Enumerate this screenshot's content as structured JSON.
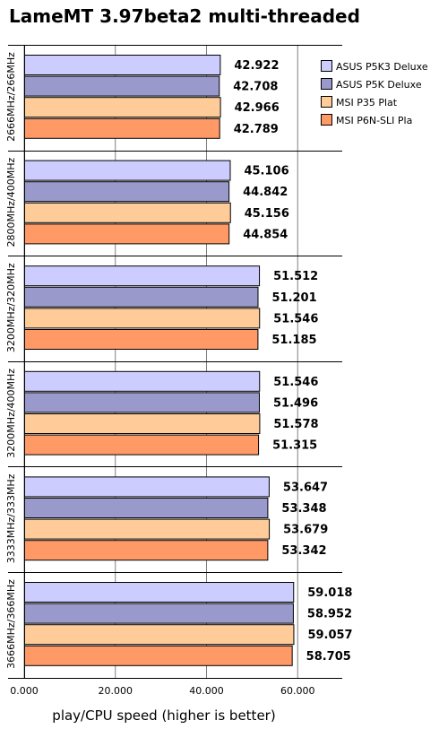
{
  "title": "LameMT 3.97beta2 multi-threaded",
  "chart_data": {
    "type": "bar",
    "orientation": "horizontal",
    "title": "LameMT 3.97beta2 multi-threaded",
    "xlabel": "play/CPU speed (higher is better)",
    "ylabel": "",
    "xlim": [
      0,
      70
    ],
    "xticks": [
      "0.000",
      "20.000",
      "40.000",
      "60.000"
    ],
    "xtick_values": [
      0,
      20,
      40,
      60
    ],
    "grid": "vertical",
    "legend_position": "top-right",
    "categories": [
      "2666MHz/266MHz",
      "2800MHz/400MHz",
      "3200MHz/320MHz",
      "3200MHz/400MHz",
      "3333MHz/333MHz",
      "3666MHz/366MHz"
    ],
    "series": [
      {
        "name": "ASUS P5K3 Deluxe",
        "color": "#ccccff",
        "values": [
          42.922,
          45.106,
          51.512,
          51.546,
          53.647,
          59.018
        ],
        "labels": [
          "42.922",
          "45.106",
          "51.512",
          "51.546",
          "53.647",
          "59.018"
        ]
      },
      {
        "name": "ASUS P5K Deluxe",
        "color": "#9999cc",
        "values": [
          42.708,
          44.842,
          51.201,
          51.496,
          53.348,
          58.952
        ],
        "labels": [
          "42.708",
          "44.842",
          "51.201",
          "51.496",
          "53.348",
          "58.952"
        ]
      },
      {
        "name": "MSI P35 Plat",
        "color": "#ffcc99",
        "values": [
          42.966,
          45.156,
          51.546,
          51.578,
          53.679,
          59.057
        ],
        "labels": [
          "42.966",
          "45.156",
          "51.546",
          "51.578",
          "53.679",
          "59.057"
        ]
      },
      {
        "name": "MSI P6N-SLI Pla",
        "color": "#ff9966",
        "values": [
          42.789,
          44.854,
          51.185,
          51.315,
          53.342,
          58.705
        ],
        "labels": [
          "42.789",
          "44.854",
          "51.185",
          "51.315",
          "53.342",
          "58.705"
        ]
      }
    ]
  }
}
